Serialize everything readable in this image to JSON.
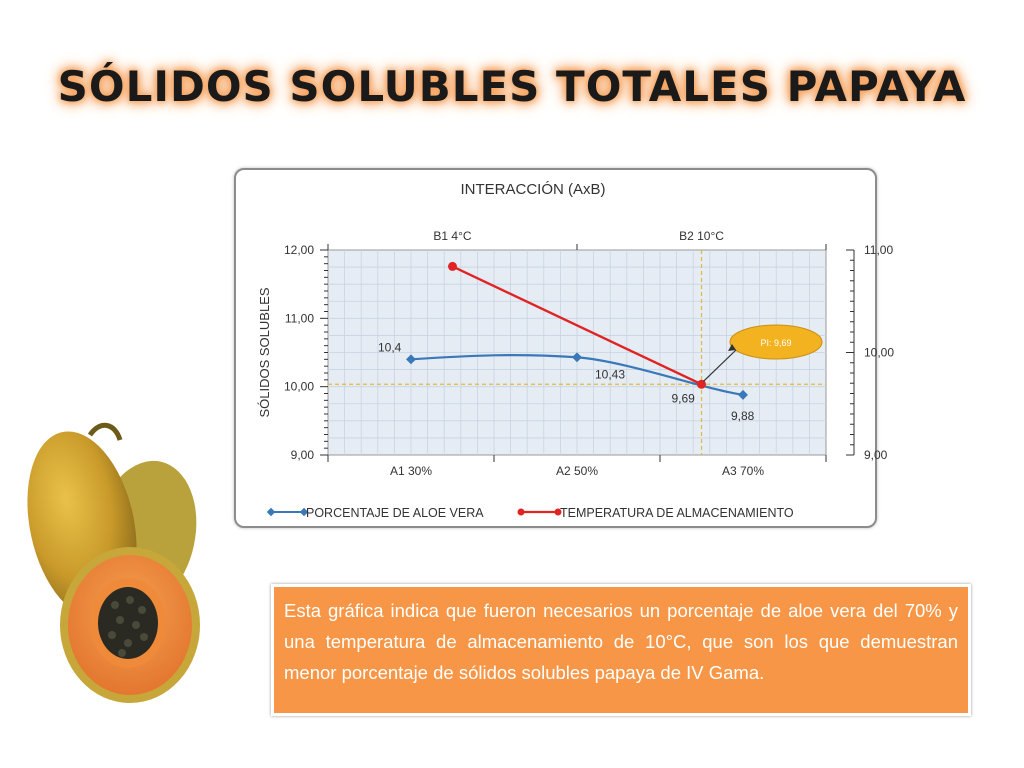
{
  "slide": {
    "title": "SÓLIDOS SOLUBLES TOTALES PAPAYA",
    "note": "Esta gráfica  indica que fueron necesarios un porcentaje de aloe vera del 70% y una temperatura de almacenamiento  de 10°C, que son los que demuestran menor porcentaje de sólidos solubles papaya de IV Gama."
  },
  "colors": {
    "aloe_series": "#3a78b8",
    "temp_series": "#e02424",
    "plot_bg": "#e5ecf4",
    "callout": "#f3b21f",
    "note_bg": "#f79646"
  },
  "chart_data": {
    "type": "line",
    "title": "INTERACCIÓN (AxB)",
    "ylabel": "SÓLIDOS  SOLUBLES",
    "x_bottom": [
      "A1 30%",
      "A2 50%",
      "A3 70%"
    ],
    "x_top": [
      "B1 4°C",
      "B2 10°C"
    ],
    "y_left": {
      "lim": [
        9,
        12
      ],
      "ticks": [
        "9,00",
        "10,00",
        "11,00",
        "12,00"
      ]
    },
    "y_right": {
      "lim": [
        9,
        11
      ],
      "ticks": [
        "9,00",
        "10,00",
        "11,00"
      ]
    },
    "series": [
      {
        "name": "PORCENTAJE DE ALOE VERA",
        "axis": "bottom-left",
        "points": [
          {
            "x": "A1 30%",
            "y": 10.4,
            "label": "10,4"
          },
          {
            "x": "A2 50%",
            "y": 10.43,
            "label": "10,43"
          },
          {
            "x": "A3 70%",
            "y": 9.88,
            "label": "9,88"
          }
        ]
      },
      {
        "name": "TEMPERATURA DE ALMACENAMIENTO",
        "axis": "top-right",
        "points": [
          {
            "x": "B1 4°C",
            "y": 10.84
          },
          {
            "x": "B2 10°C",
            "y": 9.69,
            "label": "9,69"
          }
        ]
      }
    ],
    "annotation": {
      "text": "PI: 9,69",
      "y": 10.05
    },
    "legend": "bottom",
    "grid": true
  }
}
